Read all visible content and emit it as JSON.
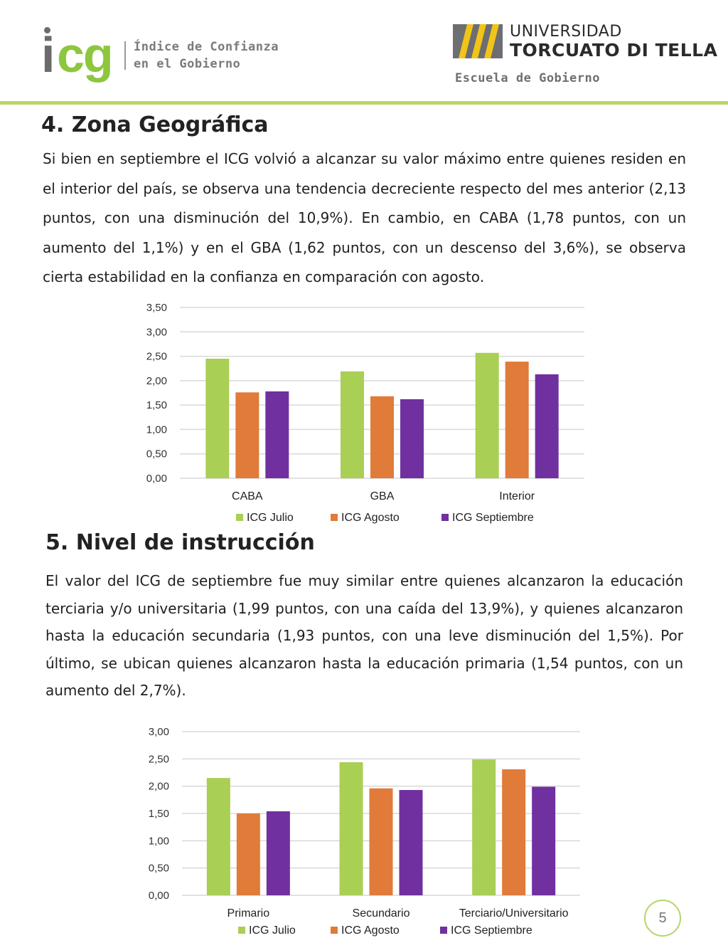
{
  "header": {
    "icg_logo_i": "i",
    "icg_logo_cg": "cg",
    "icg_name_line1": "Índice de Confianza",
    "icg_name_line2": "en el Gobierno",
    "utdt_line1": "UNIVERSIDAD",
    "utdt_line2": "TORCUATO DI TELLA",
    "utdt_school": "Escuela de Gobierno"
  },
  "section4": {
    "title": "4. Zona Geográfica",
    "body": "Si bien en septiembre el ICG volvió a alcanzar su valor máximo entre quienes residen en el interior del país, se observa una tendencia decreciente respecto del mes anterior (2,13 puntos, con una disminución del 10,9%). En cambio, en CABA (1,78 puntos, con un aumento del 1,1%) y en el GBA (1,62 puntos, con un descenso del 3,6%), se observa cierta estabilidad en la confianza en comparación con agosto."
  },
  "section5": {
    "title": "5. Nivel de instrucción",
    "body": "El valor del ICG de septiembre fue muy similar entre quienes alcanzaron la educación terciaria y/o universitaria (1,99 puntos, con una caída del 13,9%), y quienes alcanzaron hasta la educación secundaria (1,93 puntos, con una leve disminución del 1,5%). Por último, se ubican quienes alcanzaron hasta la educación primaria (1,54 puntos, con un aumento del 2,7%)."
  },
  "page_number": "5",
  "colors": {
    "julio": "#a9cf54",
    "agosto": "#e07b39",
    "septiembre": "#7030a0",
    "grid": "#d9d9d9",
    "accent": "#b5d66a"
  },
  "chart_data": [
    {
      "type": "bar",
      "title": "",
      "categories": [
        "CABA",
        "GBA",
        "Interior"
      ],
      "series": [
        {
          "name": "ICG Julio",
          "values": [
            2.45,
            2.19,
            2.57
          ]
        },
        {
          "name": "ICG Agosto",
          "values": [
            1.76,
            1.68,
            2.39
          ]
        },
        {
          "name": "ICG Septiembre",
          "values": [
            1.78,
            1.62,
            2.13
          ]
        }
      ],
      "ylim": [
        0,
        3.5
      ],
      "yticks": [
        "0,00",
        "0,50",
        "1,00",
        "1,50",
        "2,00",
        "2,50",
        "3,00",
        "3,50"
      ],
      "grid": true,
      "legend": "bottom"
    },
    {
      "type": "bar",
      "title": "",
      "categories": [
        "Primario",
        "Secundario",
        "Terciario/Universitario"
      ],
      "series": [
        {
          "name": "ICG Julio",
          "values": [
            2.15,
            2.44,
            2.49
          ]
        },
        {
          "name": "ICG Agosto",
          "values": [
            1.5,
            1.96,
            2.31
          ]
        },
        {
          "name": "ICG Septiembre",
          "values": [
            1.54,
            1.93,
            1.99
          ]
        }
      ],
      "ylim": [
        0,
        3.0
      ],
      "yticks": [
        "0,00",
        "0,50",
        "1,00",
        "1,50",
        "2,00",
        "2,50",
        "3,00"
      ],
      "grid": true,
      "legend": "bottom"
    }
  ]
}
